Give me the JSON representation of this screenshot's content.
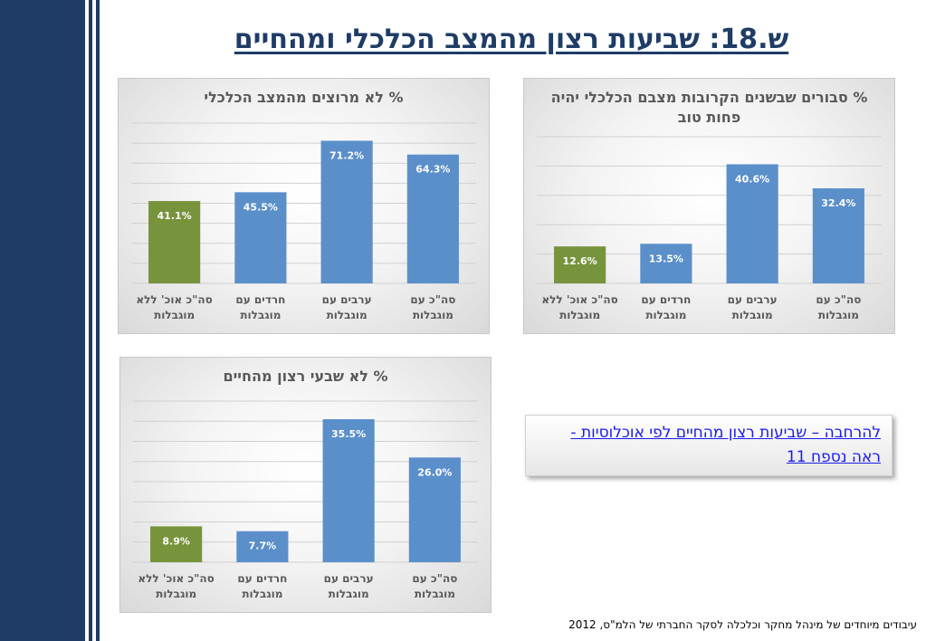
{
  "page": {
    "title": "ש.18: שביעות רצון מהמצב הכלכלי ומהחיים",
    "link_text": "להרחבה – שביעות רצון מהחיים לפי אוכלוסיות - ראה נספח 11",
    "footer": "עיבודים מיוחדים של מינהל מחקר וכלכלה לסקר החברתי של הלמ\"ס, 2012"
  },
  "colors": {
    "blue": "#5b8fca",
    "green": "#77933c",
    "dark_navy": "#1f3c66"
  },
  "chart_data": [
    {
      "type": "bar",
      "title": "% לא מרוצים מהמצב הכלכלי",
      "categories": [
        "סה\"כ עם מוגבלות",
        "ערבים עם מוגבלות",
        "חרדים עם מוגבלות",
        "סה\"כ אוכ' ללא מוגבלות"
      ],
      "values": [
        64.3,
        71.2,
        45.5,
        41.1
      ],
      "labels": [
        "64.3%",
        "71.2%",
        "45.5%",
        "41.1%"
      ],
      "bar_colors": [
        "#5b8fca",
        "#5b8fca",
        "#5b8fca",
        "#77933c"
      ],
      "ylim": [
        0,
        80
      ],
      "grid": true,
      "legend": "none"
    },
    {
      "type": "bar",
      "title": "% סבורים שבשנים הקרובות מצבם הכלכלי יהיה פחות טוב",
      "categories": [
        "סה\"כ עם מוגבלות",
        "ערבים עם מוגבלות",
        "חרדים עם מוגבלות",
        "סה\"כ אוכ' ללא מוגבלות"
      ],
      "values": [
        32.4,
        40.6,
        13.5,
        12.6
      ],
      "labels": [
        "32.4%",
        "40.6%",
        "13.5%",
        "12.6%"
      ],
      "bar_colors": [
        "#5b8fca",
        "#5b8fca",
        "#5b8fca",
        "#77933c"
      ],
      "ylim": [
        0,
        50
      ],
      "grid": true,
      "legend": "none"
    },
    {
      "type": "bar",
      "title": "% לא שבעי רצון מהחיים",
      "categories": [
        "סה\"כ עם מוגבלות",
        "ערבים עם מוגבלות",
        "חרדים עם מוגבלות",
        "סה\"כ אוכ' ללא מוגבלות"
      ],
      "values": [
        26.0,
        35.5,
        7.7,
        8.9
      ],
      "labels": [
        "26.0%",
        "35.5%",
        "7.7%",
        "8.9%"
      ],
      "bar_colors": [
        "#5b8fca",
        "#5b8fca",
        "#5b8fca",
        "#77933c"
      ],
      "ylim": [
        0,
        40
      ],
      "grid": true,
      "legend": "none"
    }
  ]
}
